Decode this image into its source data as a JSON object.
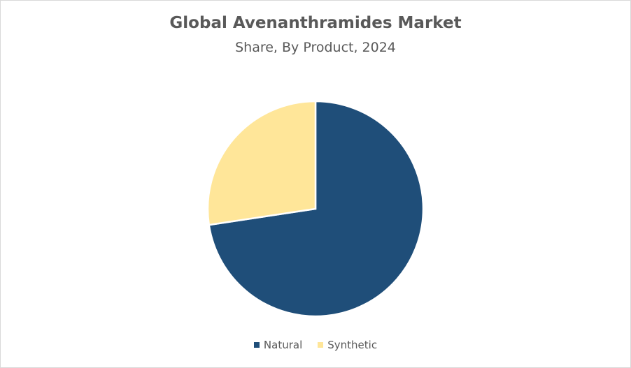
{
  "chart_data": {
    "type": "pie",
    "title": "Global Avenanthramides Market",
    "subtitle": "Share, By Product, 2024",
    "categories": [
      "Natural",
      "Synthetic"
    ],
    "values": [
      72.6,
      27.4
    ],
    "colors": [
      "#1f4e79",
      "#ffe699"
    ],
    "legend": {
      "position": "bottom",
      "entries": [
        "Natural",
        "Synthetic"
      ]
    }
  }
}
